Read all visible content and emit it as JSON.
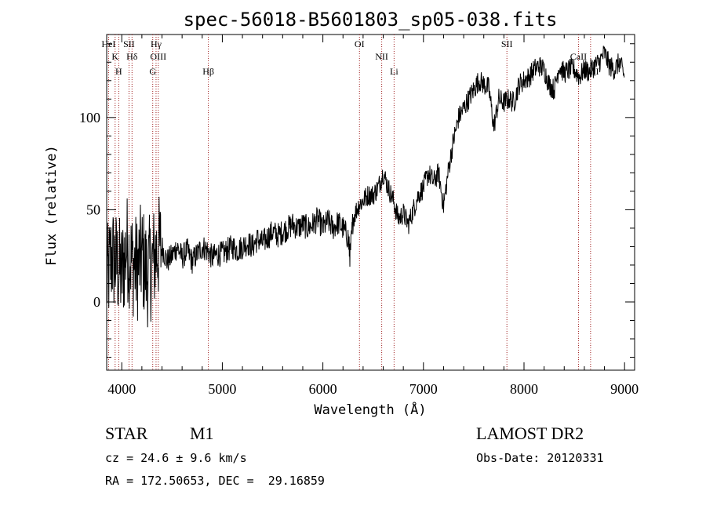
{
  "chart_data": {
    "type": "line",
    "title": "spec-56018-B5601803_sp05-038.fits",
    "xlabel": "Wavelength (Å)",
    "ylabel": "Flux (relative)",
    "xlim": [
      3850,
      9100
    ],
    "ylim": [
      -37,
      145
    ],
    "x_ticks": [
      4000,
      5000,
      6000,
      7000,
      8000,
      9000
    ],
    "y_ticks": [
      0,
      50,
      100
    ],
    "grid": false,
    "series": [
      {
        "x": [
          3850,
          3900,
          3950,
          4000,
          4050,
          4100,
          4150,
          4200,
          4250,
          4300,
          4350,
          4400,
          4450,
          4500,
          4550,
          4600,
          4650,
          4700,
          4750,
          4800,
          4850,
          4900,
          4950,
          5000,
          5050,
          5100,
          5150,
          5200,
          5250,
          5300,
          5350,
          5400,
          5450,
          5500,
          5550,
          5600,
          5650,
          5700,
          5750,
          5800,
          5850,
          5900,
          5950,
          6000,
          6050,
          6100,
          6150,
          6200,
          6250,
          6270,
          6300,
          6350,
          6400,
          6450,
          6500,
          6550,
          6600,
          6650,
          6700,
          6750,
          6800,
          6850,
          6900,
          6950,
          7000,
          7050,
          7100,
          7150,
          7200,
          7250,
          7300,
          7350,
          7400,
          7450,
          7500,
          7550,
          7600,
          7650,
          7700,
          7750,
          7800,
          7850,
          7900,
          7950,
          8000,
          8050,
          8100,
          8150,
          8200,
          8250,
          8300,
          8350,
          8400,
          8450,
          8500,
          8550,
          8600,
          8650,
          8700,
          8750,
          8800,
          8850,
          8900,
          8950,
          9000
        ],
        "y": [
          10,
          25,
          20,
          15,
          30,
          22,
          18,
          25,
          15,
          20,
          28,
          30,
          22,
          25,
          30,
          24,
          28,
          22,
          26,
          30,
          28,
          24,
          26,
          26,
          28,
          30,
          28,
          30,
          32,
          30,
          34,
          32,
          35,
          38,
          36,
          38,
          40,
          42,
          40,
          42,
          40,
          42,
          45,
          40,
          44,
          40,
          43,
          40,
          35,
          25,
          45,
          52,
          55,
          58,
          58,
          62,
          70,
          62,
          55,
          45,
          48,
          42,
          50,
          58,
          62,
          70,
          65,
          70,
          52,
          72,
          88,
          100,
          105,
          110,
          115,
          120,
          118,
          116,
          95,
          110,
          108,
          110,
          108,
          118,
          120,
          122,
          126,
          128,
          126,
          118,
          115,
          128,
          124,
          126,
          126,
          122,
          126,
          125,
          128,
          130,
          135,
          128,
          126,
          130,
          122
        ]
      }
    ],
    "lines": [
      {
        "wl": 3869,
        "label": "HeI"
      },
      {
        "wl": 3934,
        "label": "K"
      },
      {
        "wl": 3970,
        "label": "H"
      },
      {
        "wl": 4072,
        "label": "SII"
      },
      {
        "wl": 4102,
        "label": "Hδ"
      },
      {
        "wl": 4308,
        "label": "G"
      },
      {
        "wl": 4341,
        "label": "Hγ"
      },
      {
        "wl": 4363,
        "label": "OIII"
      },
      {
        "wl": 4861,
        "label": "Hβ"
      },
      {
        "wl": 6364,
        "label": "OI"
      },
      {
        "wl": 6585,
        "label": "NII"
      },
      {
        "wl": 6708,
        "label": "Li"
      },
      {
        "wl": 7830,
        "label": "SII"
      },
      {
        "wl": 8542,
        "label": "CaII"
      },
      {
        "wl": 8662,
        "label": "CaII"
      }
    ]
  },
  "info": {
    "object_type": "STAR",
    "subclass": "M1",
    "survey": "LAMOST DR2",
    "cz": "cz = 24.6 ± 9.6 km/s",
    "obs_date": "Obs-Date: 20120331",
    "coords": "RA = 172.50653, DEC =  29.16859"
  }
}
